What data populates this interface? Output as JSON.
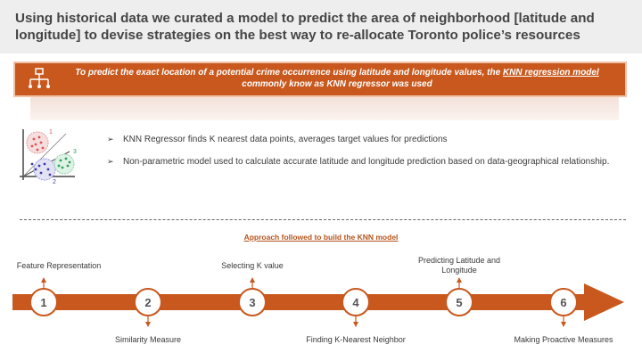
{
  "title": "Using historical data we curated a model to predict the area of neighborhood [latitude and longitude] to devise strategies on the best way to re-allocate Toronto police’s resources",
  "banner": {
    "text_before": "To predict the exact location of a potential crime occurrence using latitude and longitude values, the ",
    "link_text": "KNN regression model",
    "text_after": " commonly know as KNN regressor was used"
  },
  "knn_icon": {
    "cluster_labels": [
      "1",
      "2",
      "3"
    ]
  },
  "bullets": [
    "KNN Regressor finds K nearest data points, averages target values for predictions",
    "Non-parametric model used to calculate accurate latitude and longitude prediction based on data-geographical relationship."
  ],
  "approach_title": "Approach followed to build the KNN model",
  "steps": [
    {
      "number": "1",
      "label": "Feature Representation"
    },
    {
      "number": "2",
      "label": "Similarity Measure"
    },
    {
      "number": "3",
      "label": "Selecting K value"
    },
    {
      "number": "4",
      "label": "Finding K-Nearest Neighbor"
    },
    {
      "number": "5",
      "label": "Predicting Latitude and Longitude"
    },
    {
      "number": "6",
      "label": "Making Proactive Measures"
    }
  ],
  "colors": {
    "accent": "#c8581d",
    "banner_border": "#f0c2a6",
    "title_bg": "#eeeeee"
  }
}
